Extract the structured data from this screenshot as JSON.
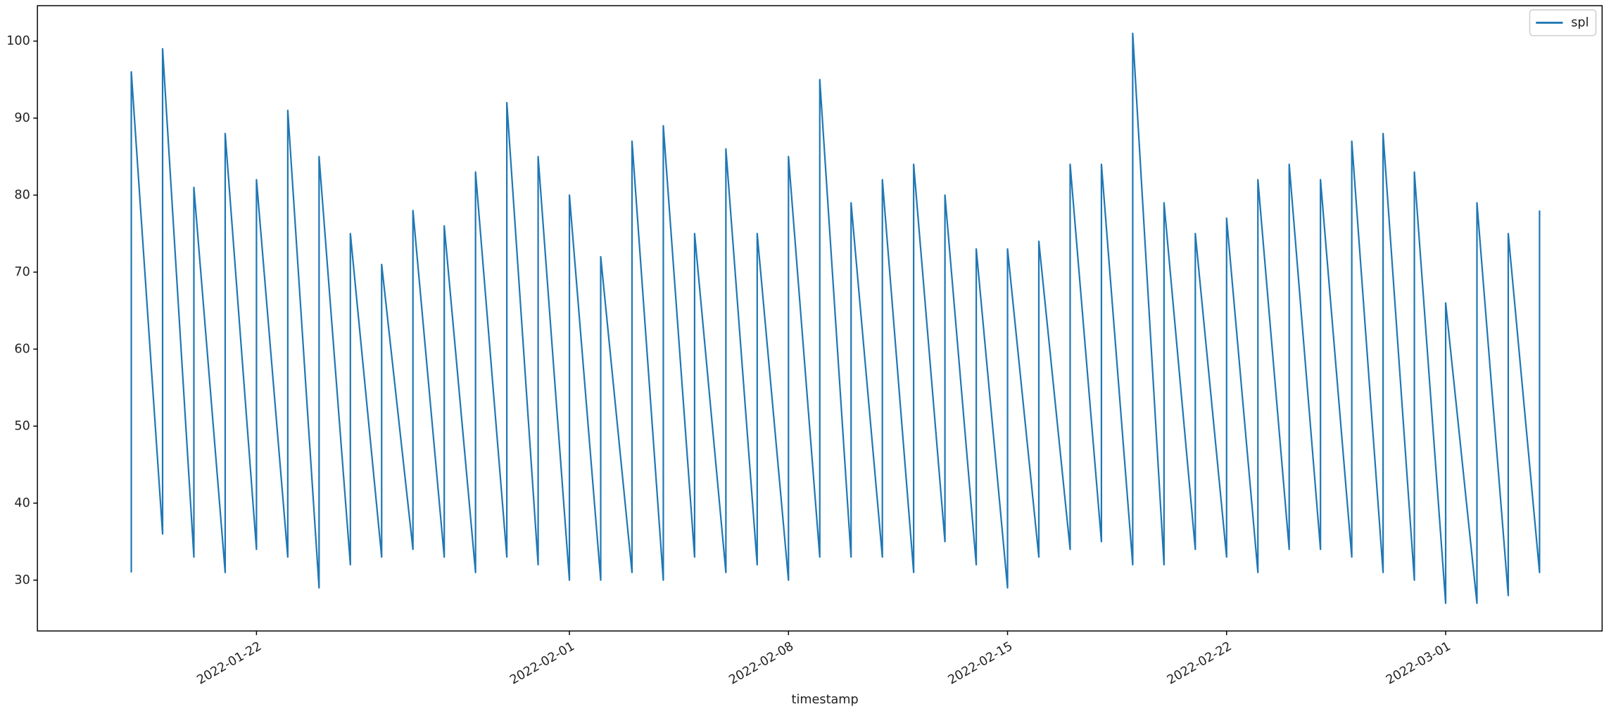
{
  "chart_data": {
    "type": "line",
    "xlabel": "timestamp",
    "legend": "upper right",
    "grid": false,
    "x": [
      "2022-01-18",
      "2022-01-18",
      "2022-01-19",
      "2022-01-19",
      "2022-01-20",
      "2022-01-20",
      "2022-01-21",
      "2022-01-21",
      "2022-01-22",
      "2022-01-22",
      "2022-01-23",
      "2022-01-23",
      "2022-01-24",
      "2022-01-24",
      "2022-01-25",
      "2022-01-25",
      "2022-01-26",
      "2022-01-26",
      "2022-01-27",
      "2022-01-27",
      "2022-01-28",
      "2022-01-28",
      "2022-01-29",
      "2022-01-29",
      "2022-01-30",
      "2022-01-30",
      "2022-01-31",
      "2022-01-31",
      "2022-02-01",
      "2022-02-01",
      "2022-02-02",
      "2022-02-02",
      "2022-02-03",
      "2022-02-03",
      "2022-02-04",
      "2022-02-04",
      "2022-02-05",
      "2022-02-05",
      "2022-02-06",
      "2022-02-06",
      "2022-02-07",
      "2022-02-07",
      "2022-02-08",
      "2022-02-08",
      "2022-02-09",
      "2022-02-09",
      "2022-02-10",
      "2022-02-10",
      "2022-02-11",
      "2022-02-11",
      "2022-02-12",
      "2022-02-12",
      "2022-02-13",
      "2022-02-13",
      "2022-02-14",
      "2022-02-14",
      "2022-02-15",
      "2022-02-15",
      "2022-02-16",
      "2022-02-16",
      "2022-02-17",
      "2022-02-17",
      "2022-02-18",
      "2022-02-18",
      "2022-02-19",
      "2022-02-19",
      "2022-02-20",
      "2022-02-20",
      "2022-02-21",
      "2022-02-21",
      "2022-02-22",
      "2022-02-22",
      "2022-02-23",
      "2022-02-23",
      "2022-02-24",
      "2022-02-24",
      "2022-02-25",
      "2022-02-25",
      "2022-02-26",
      "2022-02-26",
      "2022-02-27",
      "2022-02-27",
      "2022-02-28",
      "2022-02-28",
      "2022-03-01",
      "2022-03-01",
      "2022-03-02",
      "2022-03-02",
      "2022-03-03",
      "2022-03-03",
      "2022-03-04",
      "2022-03-04"
    ],
    "series": [
      {
        "name": "spl",
        "color": "#1f77b4",
        "values": [
          31,
          96,
          36,
          99,
          33,
          81,
          31,
          88,
          34,
          82,
          33,
          91,
          29,
          85,
          32,
          75,
          33,
          71,
          34,
          78,
          33,
          76,
          31,
          83,
          33,
          92,
          32,
          85,
          30,
          80,
          30,
          72,
          31,
          87,
          30,
          89,
          33,
          75,
          31,
          86,
          32,
          75,
          30,
          85,
          33,
          95,
          33,
          79,
          33,
          82,
          31,
          84,
          35,
          80,
          32,
          73,
          29,
          73,
          33,
          74,
          34,
          84,
          35,
          84,
          32,
          101,
          32,
          79,
          34,
          75,
          33,
          77,
          31,
          82,
          34,
          84,
          34,
          82,
          33,
          87,
          31,
          88,
          30,
          83,
          27,
          66,
          27,
          79,
          28,
          75,
          31,
          78
        ]
      }
    ],
    "xlim": [
      "2022-01-15",
      "2022-03-06"
    ],
    "xticks": [
      "2022-01-22",
      "2022-02-01",
      "2022-02-08",
      "2022-02-15",
      "2022-02-22",
      "2022-03-01"
    ],
    "ylim": [
      23.4,
      104.6
    ],
    "yticks": [
      30,
      40,
      50,
      60,
      70,
      80,
      90,
      100
    ]
  }
}
